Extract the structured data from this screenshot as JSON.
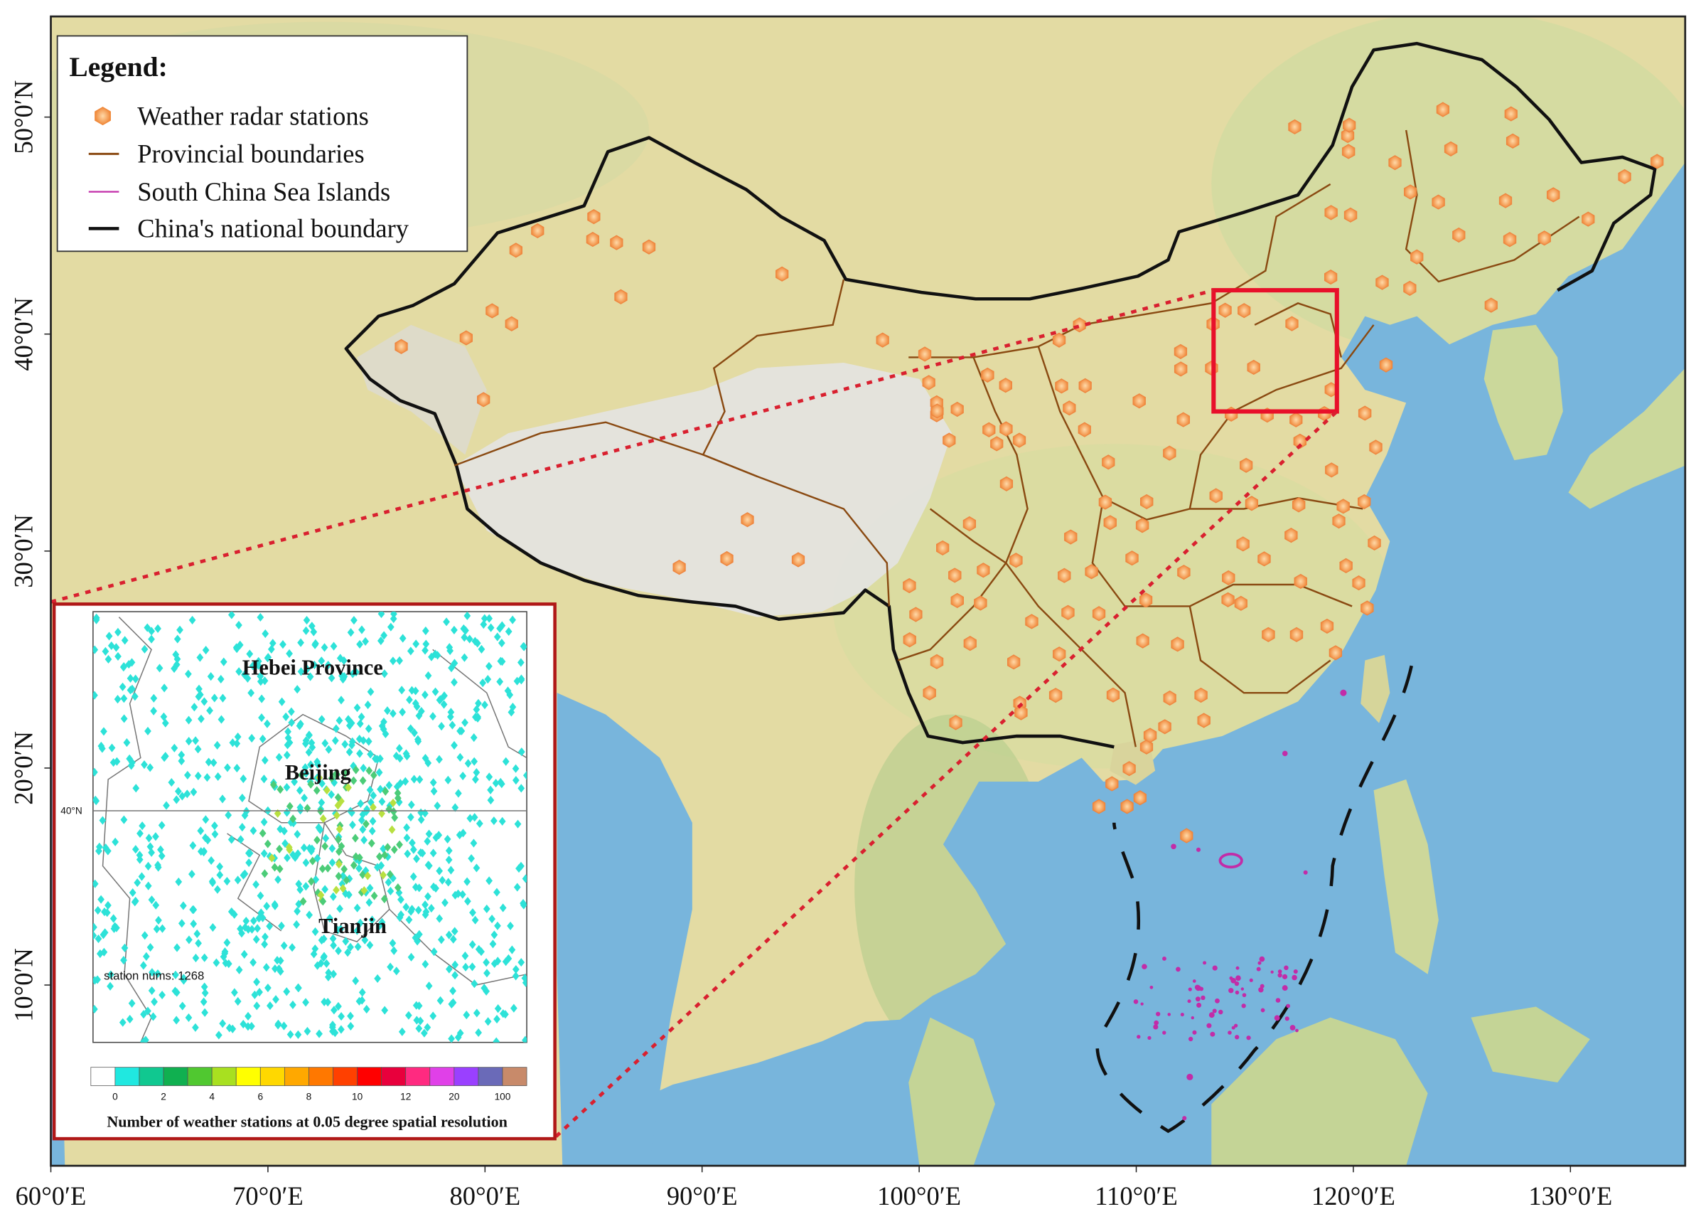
{
  "legend": {
    "title": "Legend:",
    "items": [
      "Weather radar stations",
      "Provincial boundaries",
      "South China Sea Islands",
      "China's national boundary"
    ]
  },
  "axes": {
    "x_labels": [
      "60°0′E",
      "70°0′E",
      "80°0′E",
      "90°0′E",
      "100°0′E",
      "110°0′E",
      "120°0′E",
      "130°0′E"
    ],
    "y_labels": [
      "50°0′N",
      "40°0′N",
      "30°0′N",
      "20°0′N",
      "10°0′N"
    ]
  },
  "inset": {
    "regions": [
      "Hebei Province",
      "Beijing",
      "Tianjin"
    ],
    "latitude_label": "40°N",
    "station_note": "station nums: 1268",
    "colorbar_ticks": [
      "0",
      "2",
      "4",
      "6",
      "8",
      "10",
      "12",
      "20",
      "100"
    ],
    "caption": "Number of weather stations at 0.05 degree spatial resolution"
  }
}
